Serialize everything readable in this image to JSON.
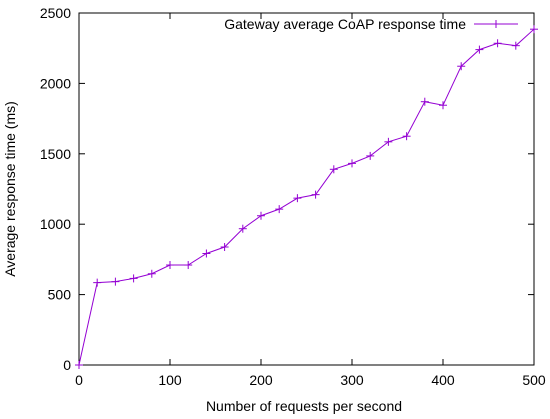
{
  "chart_data": {
    "type": "line",
    "title": "",
    "xlabel": "Number of requests per second",
    "ylabel": "Average response time (ms)",
    "xlim": [
      0,
      500
    ],
    "ylim": [
      0,
      2500
    ],
    "x_ticks": [
      0,
      100,
      200,
      300,
      400,
      500
    ],
    "y_ticks": [
      0,
      500,
      1000,
      1500,
      2000,
      2500
    ],
    "grid": false,
    "legend_position": "top-right",
    "colors": {
      "series": "#9400d3",
      "axis": "#000000"
    },
    "series": [
      {
        "name": "Gateway average CoAP response time",
        "marker": "plus",
        "x": [
          0,
          20,
          40,
          60,
          80,
          100,
          120,
          140,
          160,
          180,
          200,
          220,
          240,
          260,
          280,
          300,
          320,
          340,
          360,
          380,
          400,
          420,
          440,
          460,
          480,
          500
        ],
        "y": [
          0,
          585,
          592,
          615,
          648,
          710,
          710,
          792,
          838,
          968,
          1060,
          1107,
          1185,
          1210,
          1390,
          1432,
          1485,
          1585,
          1625,
          1870,
          1845,
          2122,
          2240,
          2285,
          2268,
          2385
        ]
      }
    ]
  }
}
